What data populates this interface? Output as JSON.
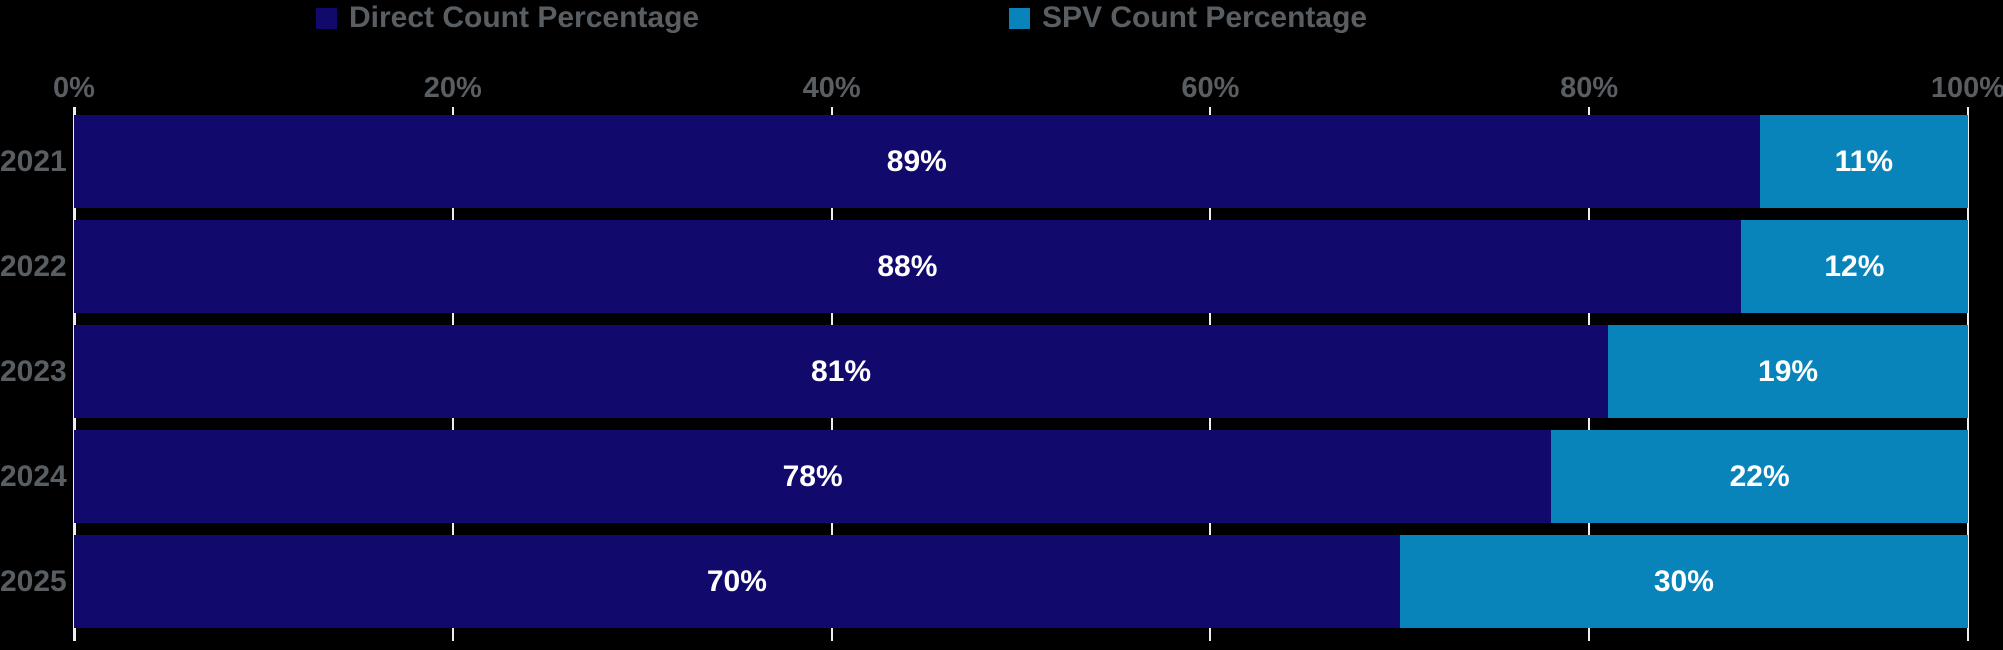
{
  "chart_data": {
    "type": "bar",
    "orientation": "horizontal-stacked",
    "title": "",
    "categories": [
      "2021",
      "2022",
      "2023",
      "2024",
      "2025"
    ],
    "series": [
      {
        "name": "Direct Count Percentage",
        "color": "#12096c",
        "values": [
          89,
          88,
          81,
          78,
          70
        ]
      },
      {
        "name": "SPV Count Percentage",
        "color": "#0884bb",
        "values": [
          11,
          12,
          19,
          22,
          30
        ]
      }
    ],
    "value_label_suffix": "%",
    "x_axis": {
      "min": 0,
      "max": 100,
      "tick_labels": [
        "0%",
        "20%",
        "40%",
        "60%",
        "80%",
        "100%"
      ],
      "tick_values": [
        0,
        20,
        40,
        60,
        80,
        100
      ],
      "label_position": "top"
    },
    "grid": "vertical-white-on-black",
    "legend_position": "top"
  },
  "legend": {
    "items": [
      {
        "label": "Direct Count Percentage",
        "color": "#12096c"
      },
      {
        "label": "SPV Count Percentage",
        "color": "#0884bb"
      }
    ]
  },
  "colors": {
    "background": "#000000",
    "gridline": "#ededed",
    "label_gray": "#595e63",
    "value_text": "#ffffff"
  }
}
